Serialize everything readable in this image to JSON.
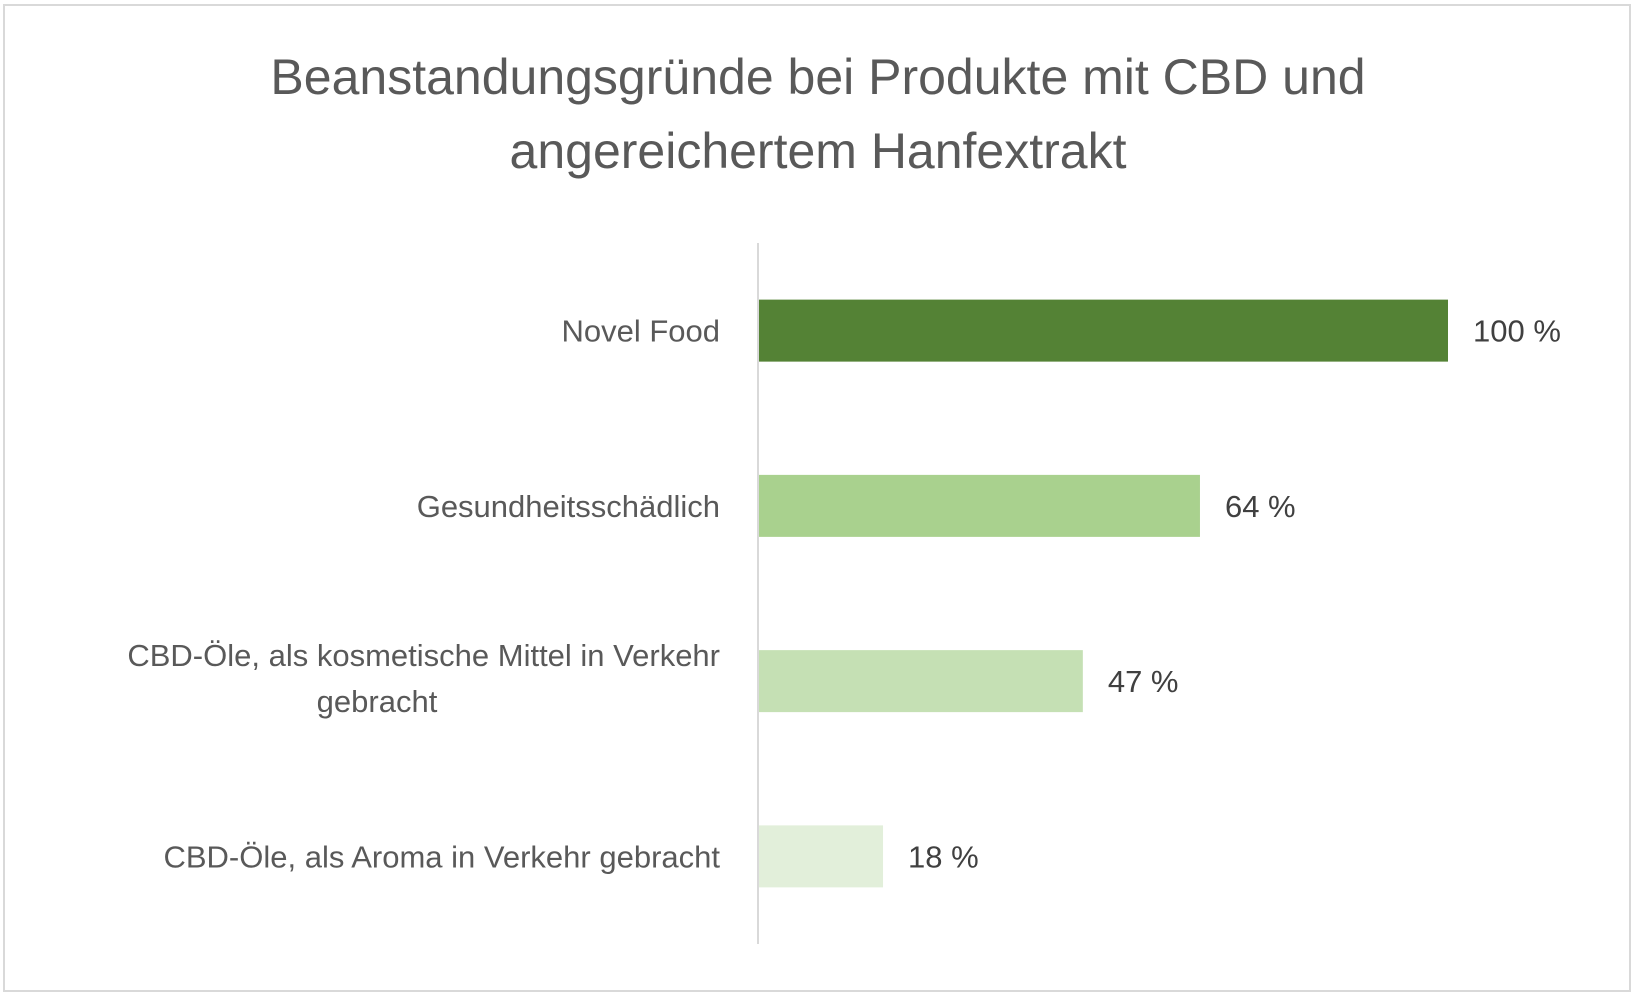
{
  "chart_data": {
    "type": "bar",
    "orientation": "horizontal",
    "title": "Beanstandungsgründe bei Produkte mit CBD und angereichertem Hanfextrakt",
    "title_lines": [
      "Beanstandungsgründe bei Produkte mit CBD und",
      "angereichertem Hanfextrakt"
    ],
    "categories": [
      "Novel Food",
      "Gesundheitsschädlich",
      "CBD-Öle, als kosmetische Mittel in Verkehr gebracht",
      "CBD-Öle, als Aroma in Verkehr gebracht"
    ],
    "category_lines": [
      [
        "Novel Food"
      ],
      [
        "Gesundheitsschädlich"
      ],
      [
        "CBD-Öle, als kosmetische Mittel in Verkehr",
        "gebracht"
      ],
      [
        "CBD-Öle, als Aroma in Verkehr gebracht"
      ]
    ],
    "values": [
      100,
      64,
      47,
      18
    ],
    "data_labels": [
      "100 %",
      "64 %",
      "47 %",
      "18 %"
    ],
    "colors": [
      "#548235",
      "#A9D18E",
      "#C5E0B4",
      "#E2EFDA"
    ],
    "xlim": [
      0,
      100
    ],
    "xlabel": "",
    "ylabel": "",
    "grid": false,
    "legend": "none"
  }
}
